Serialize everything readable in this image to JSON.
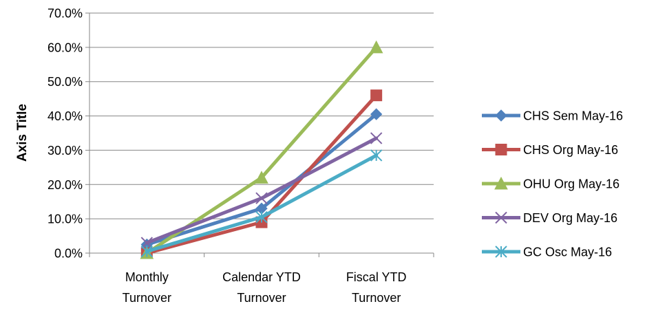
{
  "chart_data": {
    "type": "line",
    "title": "",
    "ylabel": "Axis Title",
    "xlabel": "",
    "ylim": [
      0,
      70
    ],
    "y_ticks": [
      "0.0%",
      "10.0%",
      "20.0%",
      "30.0%",
      "40.0%",
      "50.0%",
      "60.0%",
      "70.0%"
    ],
    "y_tick_values": [
      0,
      10,
      20,
      30,
      40,
      50,
      60,
      70
    ],
    "grid": "horizontal",
    "legend_position": "right",
    "categories": [
      [
        "Monthly",
        "Turnover"
      ],
      [
        "Calendar YTD",
        "Turnover"
      ],
      [
        "Fiscal YTD",
        "Turnover"
      ]
    ],
    "series": [
      {
        "name": "CHS Sem May-16",
        "color": "#4F81BD",
        "marker": "diamond",
        "values": [
          2.5,
          13.0,
          40.5
        ]
      },
      {
        "name": "CHS Org May-16",
        "color": "#C0504D",
        "marker": "square",
        "values": [
          0.0,
          9.0,
          46.0
        ]
      },
      {
        "name": "OHU Org May-16",
        "color": "#9BBB59",
        "marker": "triangle",
        "values": [
          0.0,
          22.0,
          60.0
        ]
      },
      {
        "name": "DEV Org May-16",
        "color": "#8064A2",
        "marker": "x",
        "values": [
          3.0,
          16.0,
          33.5
        ]
      },
      {
        "name": "GC Osc May-16",
        "color": "#4BACC6",
        "marker": "star",
        "values": [
          0.5,
          10.5,
          28.5
        ]
      }
    ]
  }
}
